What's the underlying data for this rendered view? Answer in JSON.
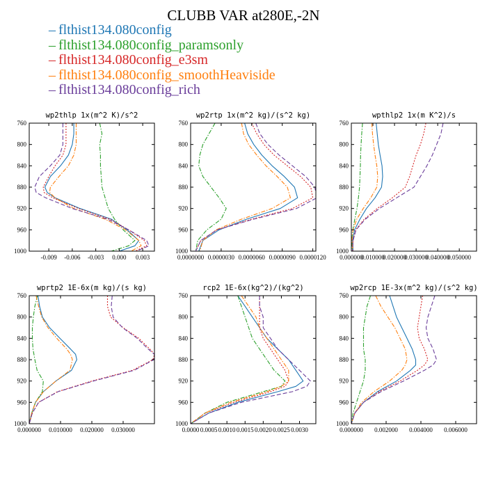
{
  "title": "CLUBB VAR at280E,-2N",
  "legend": [
    {
      "label": "flthist134.080config",
      "color": "#1f77b4",
      "dash": "solid"
    },
    {
      "label": "flthist134.080config_paramsonly",
      "color": "#2ca02c",
      "dash": "dashdot"
    },
    {
      "label": "flthist134.080config_e3sm",
      "color": "#d62728",
      "dash": "dot"
    },
    {
      "label": "flthist134.080config_smoothHeaviside",
      "color": "#ff7f0e",
      "dash": "dashdot"
    },
    {
      "label": "flthist134.080config_rich",
      "color": "#6a3d9a",
      "dash": "dash"
    }
  ],
  "chart_data": [
    {
      "type": "line",
      "title": "wp2thlp  1x(m^2 K)/s^2",
      "xlim": [
        -0.0115,
        0.0045
      ],
      "ylim": [
        760,
        1000
      ],
      "y_reversed": true,
      "xticks": [
        "-0.009",
        "-0.006",
        "-0.003",
        "0.000",
        "0.003"
      ],
      "xtick_values": [
        -0.009,
        -0.006,
        -0.003,
        0.0,
        0.003
      ],
      "yticks": [
        "760",
        "800",
        "840",
        "880",
        "920",
        "960",
        "1000"
      ],
      "y": [
        760,
        780,
        800,
        820,
        840,
        860,
        880,
        890,
        900,
        920,
        940,
        960,
        980,
        990,
        1000
      ],
      "series": [
        {
          "values": [
            -0.0058,
            -0.0058,
            -0.006,
            -0.0065,
            -0.0075,
            -0.0088,
            -0.0095,
            -0.0092,
            -0.0082,
            -0.005,
            -0.001,
            0.001,
            0.0025,
            0.002,
            0.0
          ]
        },
        {
          "values": [
            -0.0025,
            -0.0022,
            -0.0025,
            -0.0024,
            -0.0024,
            -0.0023,
            -0.0022,
            -0.002,
            -0.0018,
            -0.0014,
            -0.0006,
            0.0005,
            0.002,
            0.0012,
            -0.001
          ]
        },
        {
          "values": [
            -0.0068,
            -0.0068,
            -0.0068,
            -0.0072,
            -0.0082,
            -0.009,
            -0.0097,
            -0.0096,
            -0.0085,
            -0.0052,
            -0.0012,
            0.0012,
            0.0032,
            0.0035,
            0.002
          ]
        },
        {
          "values": [
            -0.0055,
            -0.0055,
            -0.0055,
            -0.0058,
            -0.0065,
            -0.0077,
            -0.0088,
            -0.0089,
            -0.0082,
            -0.0058,
            -0.0018,
            0.0008,
            0.0025,
            0.0028,
            0.0015
          ]
        },
        {
          "values": [
            -0.0072,
            -0.0072,
            -0.0072,
            -0.0076,
            -0.0088,
            -0.0102,
            -0.0108,
            -0.0106,
            -0.0094,
            -0.006,
            -0.0015,
            0.0012,
            0.0035,
            0.0038,
            0.0022
          ]
        }
      ]
    },
    {
      "type": "line",
      "title": "wp2rtp  1x(m^2 kg)/(s^2 kg)",
      "xlim": [
        0.0,
        1.23e-05
      ],
      "ylim": [
        760,
        1000
      ],
      "y_reversed": true,
      "xticks": [
        "0.0000000",
        "0.0000030",
        "0.0000060",
        "0.0000090",
        "0.0000120"
      ],
      "xtick_values": [
        0.0,
        3e-06,
        6e-06,
        9e-06,
        1.2e-05
      ],
      "yticks": [
        "760",
        "800",
        "840",
        "880",
        "920",
        "960",
        "1000"
      ],
      "y": [
        760,
        780,
        800,
        820,
        840,
        860,
        880,
        900,
        920,
        940,
        960,
        980,
        1000
      ],
      "series": [
        {
          "values": [
            5.3e-06,
            5.6e-06,
            6.2e-06,
            7e-06,
            8e-06,
            9.2e-06,
            1.02e-05,
            1.05e-05,
            8.8e-06,
            5.5e-06,
            2.8e-06,
            1.2e-06,
            8e-07
          ]
        },
        {
          "values": [
            2.4e-06,
            1.8e-06,
            1.2e-06,
            9e-07,
            8e-07,
            1.2e-06,
            2e-06,
            2.8e-06,
            3.5e-06,
            3e-06,
            1.6e-06,
            7e-07,
            5e-07
          ]
        },
        {
          "values": [
            6e-06,
            6.5e-06,
            7.2e-06,
            8.2e-06,
            9.5e-06,
            1.08e-05,
            1.18e-05,
            1.2e-05,
            1e-05,
            6e-06,
            2.6e-06,
            1e-06,
            5e-07
          ]
        },
        {
          "values": [
            5e-06,
            5.2e-06,
            5.7e-06,
            6.5e-06,
            7.4e-06,
            8.5e-06,
            9.5e-06,
            9.8e-06,
            8e-06,
            5e-06,
            2.5e-06,
            1.2e-06,
            9e-07
          ]
        },
        {
          "values": [
            6.4e-06,
            6.8e-06,
            7.6e-06,
            8.7e-06,
            1e-05,
            1.13e-05,
            1.22e-05,
            1.24e-05,
            1.04e-05,
            6.2e-06,
            2.6e-06,
            1e-06,
            5e-07
          ]
        }
      ]
    },
    {
      "type": "line",
      "title": "wpthlp2  1x(m K^2)/s",
      "xlim": [
        0.0,
        0.058
      ],
      "ylim": [
        760,
        1000
      ],
      "y_reversed": true,
      "xticks": [
        "0.000000",
        "0.010000",
        "0.020000",
        "0.030000",
        "0.040000",
        "0.050000"
      ],
      "xtick_values": [
        0.0,
        0.01,
        0.02,
        0.03,
        0.04,
        0.05
      ],
      "yticks": [
        "760",
        "800",
        "840",
        "880",
        "920",
        "960",
        "1000"
      ],
      "y": [
        760,
        780,
        800,
        820,
        840,
        860,
        880,
        900,
        920,
        940,
        960,
        980,
        1000
      ],
      "series": [
        {
          "values": [
            0.0115,
            0.012,
            0.0125,
            0.0133,
            0.0142,
            0.0145,
            0.014,
            0.011,
            0.007,
            0.004,
            0.0015,
            0.0006,
            0.0008
          ]
        },
        {
          "values": [
            0.0052,
            0.0048,
            0.0045,
            0.0043,
            0.0042,
            0.004,
            0.0038,
            0.0033,
            0.0026,
            0.0016,
            0.0007,
            0.0002,
            0.0005
          ]
        },
        {
          "values": [
            0.0345,
            0.0335,
            0.032,
            0.03,
            0.0285,
            0.027,
            0.025,
            0.019,
            0.012,
            0.006,
            0.002,
            0.0008,
            0.0005
          ]
        },
        {
          "values": [
            0.0095,
            0.0098,
            0.0103,
            0.011,
            0.0118,
            0.0122,
            0.0118,
            0.009,
            0.0055,
            0.0025,
            0.0008,
            0.0003,
            0.0007
          ]
        },
        {
          "values": [
            0.0425,
            0.0415,
            0.0395,
            0.0375,
            0.035,
            0.032,
            0.029,
            0.021,
            0.013,
            0.0065,
            0.0022,
            0.0008,
            0.0005
          ]
        }
      ]
    },
    {
      "type": "line",
      "title": "wprtp2  1E-6x(m kg)/(s kg)",
      "xlim": [
        0.0,
        0.04
      ],
      "ylim": [
        760,
        1000
      ],
      "y_reversed": true,
      "xticks": [
        "0.000000",
        "0.010000",
        "0.020000",
        "0.030000"
      ],
      "xtick_values": [
        0.0,
        0.01,
        0.02,
        0.03
      ],
      "yticks": [
        "760",
        "800",
        "840",
        "880",
        "920",
        "960",
        "1000"
      ],
      "y": [
        760,
        780,
        800,
        820,
        840,
        860,
        870,
        880,
        900,
        920,
        940,
        960,
        980,
        1000
      ],
      "series": [
        {
          "values": [
            0.0028,
            0.0033,
            0.0042,
            0.0065,
            0.0098,
            0.0132,
            0.0148,
            0.0152,
            0.0135,
            0.0085,
            0.0045,
            0.002,
            0.0008,
            0.0
          ]
        },
        {
          "values": [
            0.0026,
            0.0018,
            0.0013,
            0.001,
            0.001,
            0.0012,
            0.0015,
            0.0018,
            0.0025,
            0.0045,
            0.0042,
            0.002,
            0.0008,
            0.0
          ]
        },
        {
          "values": [
            0.025,
            0.025,
            0.026,
            0.03,
            0.035,
            0.0385,
            0.04,
            0.0395,
            0.033,
            0.02,
            0.009,
            0.003,
            0.001,
            0.0
          ]
        },
        {
          "values": [
            0.0022,
            0.003,
            0.004,
            0.006,
            0.0088,
            0.012,
            0.0132,
            0.0138,
            0.013,
            0.0085,
            0.0045,
            0.002,
            0.0008,
            0.0
          ]
        },
        {
          "values": [
            0.0265,
            0.0262,
            0.0268,
            0.0298,
            0.0345,
            0.038,
            0.04,
            0.0398,
            0.0335,
            0.0205,
            0.0092,
            0.003,
            0.001,
            0.0
          ]
        }
      ]
    },
    {
      "type": "line",
      "title": "rcp2  1E-6x(kg^2)/(kg^2)",
      "xlim": [
        0.0,
        0.00345
      ],
      "ylim": [
        760,
        1000
      ],
      "y_reversed": true,
      "xticks": [
        "0.0000",
        "0.0005",
        "0.0010",
        "0.0015",
        "0.0020",
        "0.0025",
        "0.0030"
      ],
      "xtick_values": [
        0.0,
        0.0005,
        0.001,
        0.0015,
        0.002,
        0.0025,
        0.003
      ],
      "yticks": [
        "760",
        "800",
        "840",
        "880",
        "920",
        "960",
        "1000"
      ],
      "y": [
        760,
        780,
        800,
        820,
        840,
        860,
        880,
        900,
        920,
        930,
        940,
        960,
        980,
        1000
      ],
      "series": [
        {
          "values": [
            0.0013,
            0.0015,
            0.0017,
            0.0019,
            0.0021,
            0.0024,
            0.0027,
            0.0029,
            0.0031,
            0.0029,
            0.0024,
            0.0013,
            0.0005,
            0.0
          ]
        },
        {
          "values": [
            0.0013,
            0.0014,
            0.0015,
            0.0016,
            0.0017,
            0.0019,
            0.0021,
            0.0023,
            0.0026,
            0.0025,
            0.002,
            0.001,
            0.0004,
            0.0
          ]
        },
        {
          "values": [
            0.0019,
            0.0019,
            0.0019,
            0.0019,
            0.002,
            0.0022,
            0.0024,
            0.0026,
            0.0027,
            0.0026,
            0.0022,
            0.0012,
            0.0004,
            0.0
          ]
        },
        {
          "values": [
            0.0014,
            0.0016,
            0.0018,
            0.0019,
            0.0021,
            0.0023,
            0.0025,
            0.0027,
            0.0027,
            0.0025,
            0.0021,
            0.0011,
            0.0004,
            0.0
          ]
        },
        {
          "values": [
            0.0019,
            0.0019,
            0.002,
            0.002,
            0.0022,
            0.0024,
            0.0027,
            0.003,
            0.0033,
            0.0032,
            0.0028,
            0.0014,
            0.0005,
            0.0
          ]
        }
      ]
    },
    {
      "type": "line",
      "title": "wp2rcp  1E-3x(m^2 kg)/(s^2 kg)",
      "xlim": [
        0.0,
        0.0072
      ],
      "ylim": [
        760,
        1000
      ],
      "y_reversed": true,
      "xticks": [
        "0.000000",
        "0.002000",
        "0.004000",
        "0.006000"
      ],
      "xtick_values": [
        0.0,
        0.002,
        0.004,
        0.006
      ],
      "yticks": [
        "760",
        "800",
        "840",
        "880",
        "920",
        "960",
        "1000"
      ],
      "y": [
        760,
        780,
        800,
        820,
        840,
        860,
        880,
        890,
        900,
        920,
        940,
        960,
        980,
        1000
      ],
      "series": [
        {
          "values": [
            0.0022,
            0.0024,
            0.0026,
            0.0029,
            0.0032,
            0.0035,
            0.0037,
            0.0037,
            0.0034,
            0.0026,
            0.0015,
            0.0007,
            0.0002,
            0.0
          ]
        },
        {
          "values": [
            0.0011,
            0.0009,
            0.0008,
            0.0007,
            0.0007,
            0.0007,
            0.0008,
            0.0008,
            0.0008,
            0.0007,
            0.0005,
            0.0003,
            0.0001,
            0.0
          ]
        },
        {
          "values": [
            0.0041,
            0.004,
            0.0039,
            0.0038,
            0.0039,
            0.0042,
            0.0044,
            0.0042,
            0.0038,
            0.0028,
            0.0016,
            0.0007,
            0.0002,
            0.0
          ]
        },
        {
          "values": [
            0.0014,
            0.0017,
            0.0021,
            0.0025,
            0.0028,
            0.0031,
            0.0032,
            0.0031,
            0.0029,
            0.0022,
            0.0013,
            0.0006,
            0.0002,
            0.0
          ]
        },
        {
          "values": [
            0.0048,
            0.0046,
            0.0044,
            0.0043,
            0.0044,
            0.0047,
            0.0049,
            0.0047,
            0.0042,
            0.003,
            0.0017,
            0.0007,
            0.0002,
            0.0
          ]
        }
      ]
    }
  ]
}
